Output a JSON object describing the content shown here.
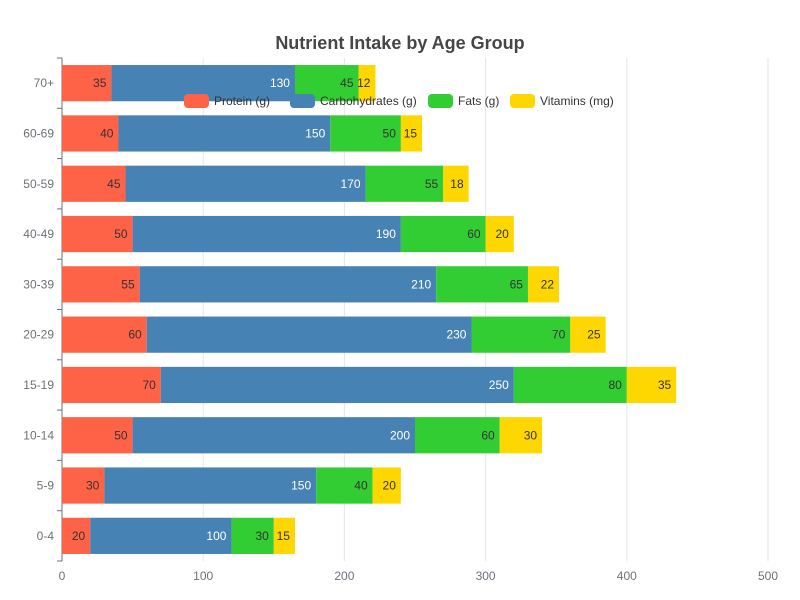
{
  "chart_data": {
    "type": "bar",
    "orientation": "horizontal",
    "stacked": true,
    "title": "Nutrient Intake by Age Group",
    "categories": [
      "0-4",
      "5-9",
      "10-14",
      "15-19",
      "20-29",
      "30-39",
      "40-49",
      "50-59",
      "60-69",
      "70+"
    ],
    "series": [
      {
        "name": "Protein (g)",
        "color": "#ff6347",
        "values": [
          20,
          30,
          50,
          70,
          60,
          55,
          50,
          45,
          40,
          35
        ]
      },
      {
        "name": "Carbohydrates (g)",
        "color": "#4682b4",
        "values": [
          100,
          150,
          200,
          250,
          230,
          210,
          190,
          170,
          150,
          130
        ]
      },
      {
        "name": "Fats (g)",
        "color": "#32cd32",
        "values": [
          30,
          40,
          60,
          80,
          70,
          65,
          60,
          55,
          50,
          45
        ]
      },
      {
        "name": "Vitamins (mg)",
        "color": "#ffd700",
        "values": [
          15,
          20,
          30,
          35,
          25,
          22,
          20,
          18,
          15,
          12
        ]
      }
    ],
    "xlim": [
      0,
      500
    ],
    "x_ticks": [
      0,
      100,
      200,
      300,
      400,
      500
    ],
    "grid": "vertical",
    "legend_position": "top-center",
    "label_colors": [
      "#333333",
      "#ffffff",
      "#333333",
      "#333333"
    ]
  }
}
